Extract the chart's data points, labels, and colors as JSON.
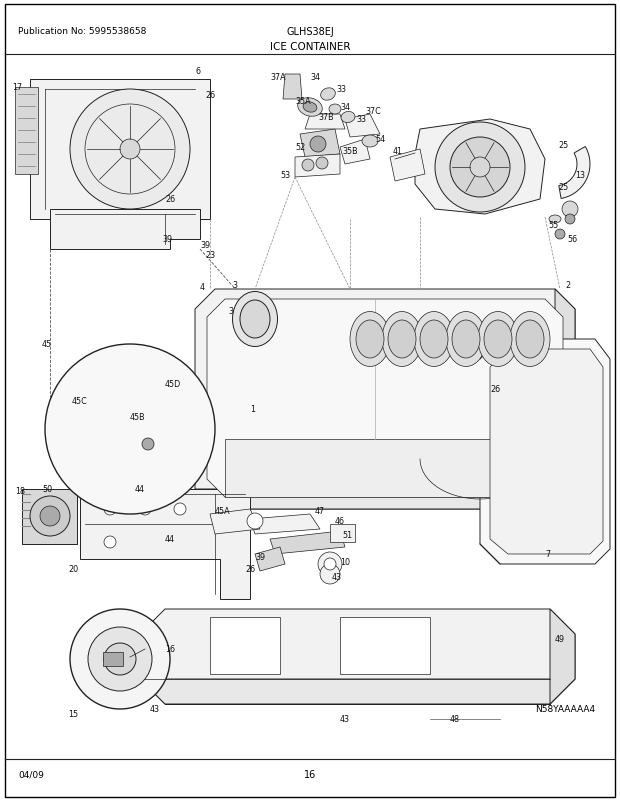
{
  "bg_color": "#ffffff",
  "border_color": "#000000",
  "text_color": "#000000",
  "pub_no": "Publication No: 5995538658",
  "model": "GLHS38EJ",
  "section_title": "ICE CONTAINER",
  "date_code": "04/09",
  "page_number": "16",
  "diagram_id": "N58YAAAAA4",
  "small_fontsize": 7.0,
  "label_fontsize": 6.0
}
